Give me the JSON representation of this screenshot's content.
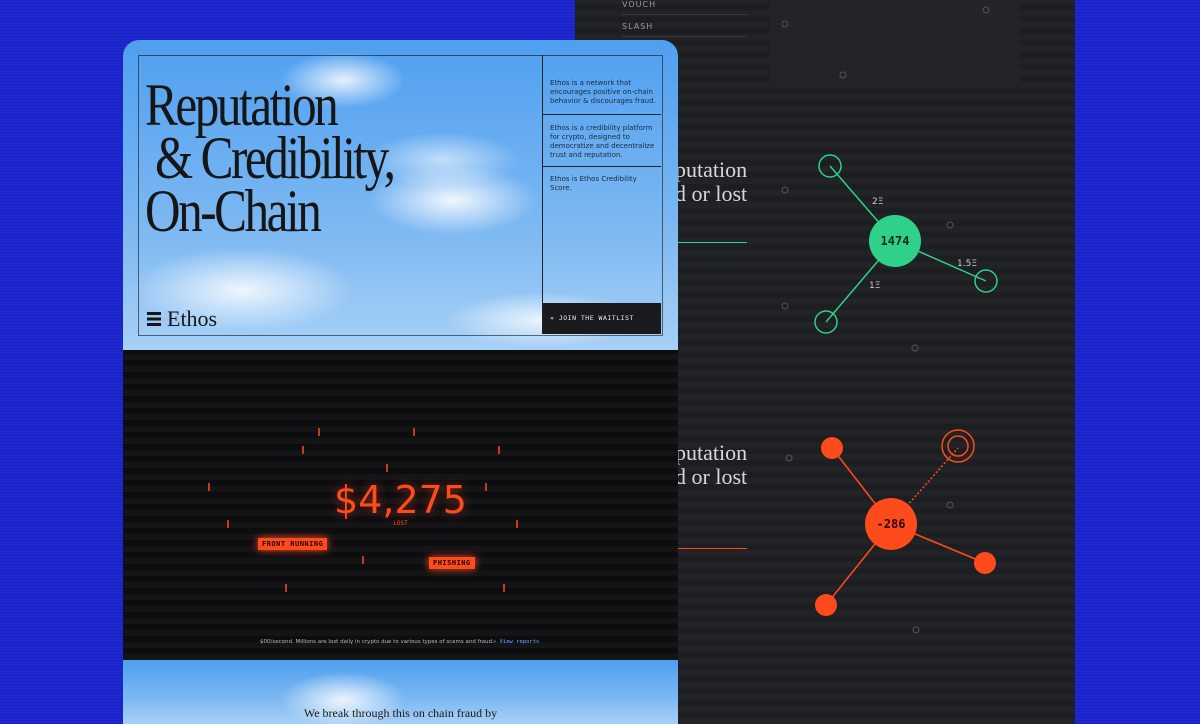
{
  "hero": {
    "title_lines": [
      "Reputation",
      "& Credibility,",
      "On-Chain"
    ],
    "logo": "Ethos",
    "about": [
      "Ethos is a network that encourages positive on-chain behavior & discourages fraud.",
      "Ethos is a credibility platform for crypto, designed to democratize and decentralize trust and reputation.",
      "Ethos is Ethos Credibility Score."
    ],
    "cta": "» JOIN THE WAITLIST"
  },
  "fraud": {
    "amount": "$4,275",
    "amount_label": "LOST",
    "tags": [
      "FRONT RUNNING",
      "PHISHING"
    ],
    "note": "$00/second. Millions are lost daily in crypto due to various types of scams and fraud.",
    "link": "» View reports"
  },
  "next": {
    "heading": "We break through this on chain fraud by"
  },
  "side": {
    "menu": [
      "VOUCH",
      "SLASH"
    ],
    "vouch": {
      "heading_lines": [
        "putation",
        "d or lost"
      ],
      "score": "1474",
      "amounts": [
        "2Ξ",
        "1.5Ξ",
        "1Ξ"
      ]
    },
    "slash": {
      "heading_lines": [
        "putation",
        "d or lost"
      ],
      "score": "-286"
    }
  }
}
